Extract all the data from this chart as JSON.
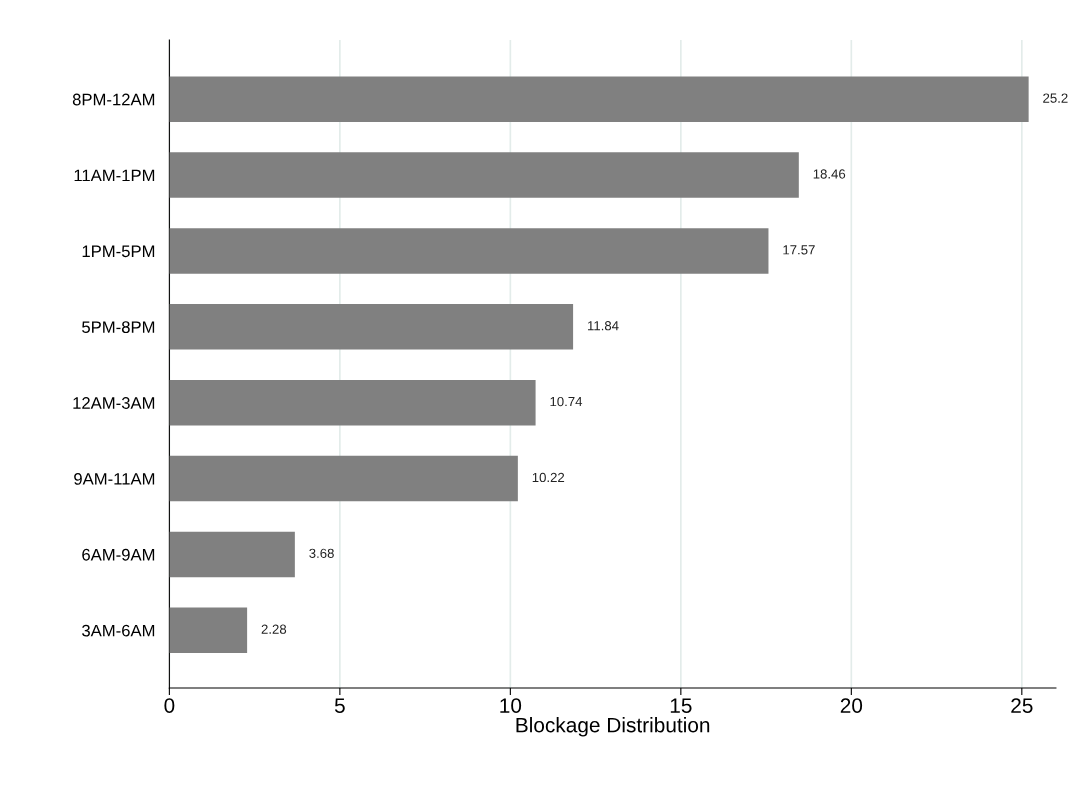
{
  "chart_data": {
    "type": "bar",
    "orientation": "horizontal",
    "xlabel": "Blockage Distribution",
    "categories": [
      "8PM-12AM",
      "11AM-1PM",
      "1PM-5PM",
      "5PM-8PM",
      "12AM-3AM",
      "9AM-11AM",
      "6AM-9AM",
      "3AM-6AM"
    ],
    "values": [
      25.2,
      18.46,
      17.57,
      11.84,
      10.74,
      10.22,
      3.68,
      2.28
    ],
    "color": "#808080",
    "xlim": [
      0,
      26
    ],
    "xticks": [
      0,
      5,
      10,
      15,
      20,
      25
    ],
    "grid": "x",
    "data_labels": true
  }
}
